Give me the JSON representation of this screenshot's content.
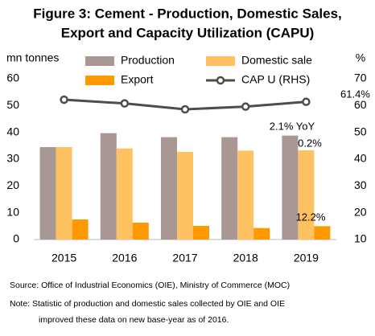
{
  "chart_data": {
    "type": "bar_line",
    "title": "Figure 3: Cement - Production, Domestic Sales,",
    "subtitle": "Export and Capacity Utilization (CAPU)",
    "y_label": "mn tonnes",
    "y2_label": "%",
    "categories": [
      "2015",
      "2016",
      "2017",
      "2018",
      "2019"
    ],
    "series": [
      {
        "name": "Production",
        "color": "#a89792",
        "values": [
          34.5,
          39.7,
          38.2,
          38.2,
          38.8
        ]
      },
      {
        "name": "Domestic sale",
        "color": "#ffc263",
        "values": [
          34.5,
          34.0,
          32.7,
          33.2,
          33.3
        ]
      },
      {
        "name": "Export",
        "color": "#ff9900",
        "values": [
          7.5,
          6.3,
          5.1,
          4.3,
          5.0
        ]
      },
      {
        "name": "CAP U (RHS)",
        "color": "#4d4d4d",
        "axis": "y2",
        "values": [
          62.2,
          60.8,
          58.6,
          59.6,
          61.4
        ]
      }
    ],
    "ylim": [
      0,
      60
    ],
    "yticks": [
      0,
      10,
      20,
      30,
      40,
      50,
      60
    ],
    "y2lim": [
      10,
      70
    ],
    "y2ticks": [
      10,
      20,
      30,
      40,
      50,
      60,
      70
    ],
    "annotations": [
      "61.4%",
      "2.1% YoY",
      "0.2%",
      "12.2%"
    ],
    "notes": [
      "Source: Office of Industrial Economics (OIE), Ministry of Commerce (MOC)",
      "Note:  Statistic of production and domestic sales collected by OIE and OIE",
      "improved these data on new base-year as of 2016."
    ]
  }
}
